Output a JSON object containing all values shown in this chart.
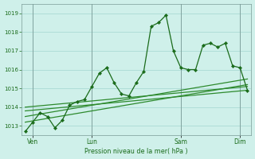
{
  "background_color": "#cff0ea",
  "grid_color": "#b0ddd7",
  "line_color_main": "#1a6b1a",
  "line_color_trend": "#2d8a2d",
  "xlabel": "Pression niveau de la mer( hPa )",
  "ylim": [
    1012.5,
    1019.5
  ],
  "yticks": [
    1013,
    1014,
    1015,
    1016,
    1017,
    1018,
    1019
  ],
  "day_labels": [
    "Ven",
    "Lun",
    "Sam",
    "Dim"
  ],
  "day_positions": [
    1,
    9,
    21,
    29
  ],
  "vline_positions": [
    1,
    9,
    21,
    29
  ],
  "series1_x": [
    0,
    1,
    2,
    3,
    4,
    5,
    6,
    7,
    8,
    9,
    10,
    11,
    12,
    13,
    14,
    15,
    16,
    17,
    18,
    19,
    20,
    21,
    22,
    23,
    24,
    25,
    26,
    27,
    28,
    29,
    30
  ],
  "series1_y": [
    1012.7,
    1013.2,
    1013.7,
    1013.5,
    1012.9,
    1013.3,
    1014.1,
    1014.3,
    1014.4,
    1015.1,
    1015.8,
    1016.1,
    1015.3,
    1014.7,
    1014.6,
    1015.3,
    1015.9,
    1018.3,
    1018.5,
    1018.9,
    1017.0,
    1016.1,
    1016.0,
    1016.0,
    1017.3,
    1017.4,
    1017.2,
    1017.4,
    1016.2,
    1016.1,
    1014.9
  ],
  "trend1_x": [
    0,
    30
  ],
  "trend1_y": [
    1013.2,
    1015.2
  ],
  "trend2_x": [
    0,
    30
  ],
  "trend2_y": [
    1013.5,
    1015.5
  ],
  "trend3_x": [
    0,
    30
  ],
  "trend3_y": [
    1013.8,
    1014.9
  ],
  "trend4_x": [
    0,
    30
  ],
  "trend4_y": [
    1014.0,
    1015.1
  ],
  "xlim": [
    -0.5,
    30.5
  ]
}
